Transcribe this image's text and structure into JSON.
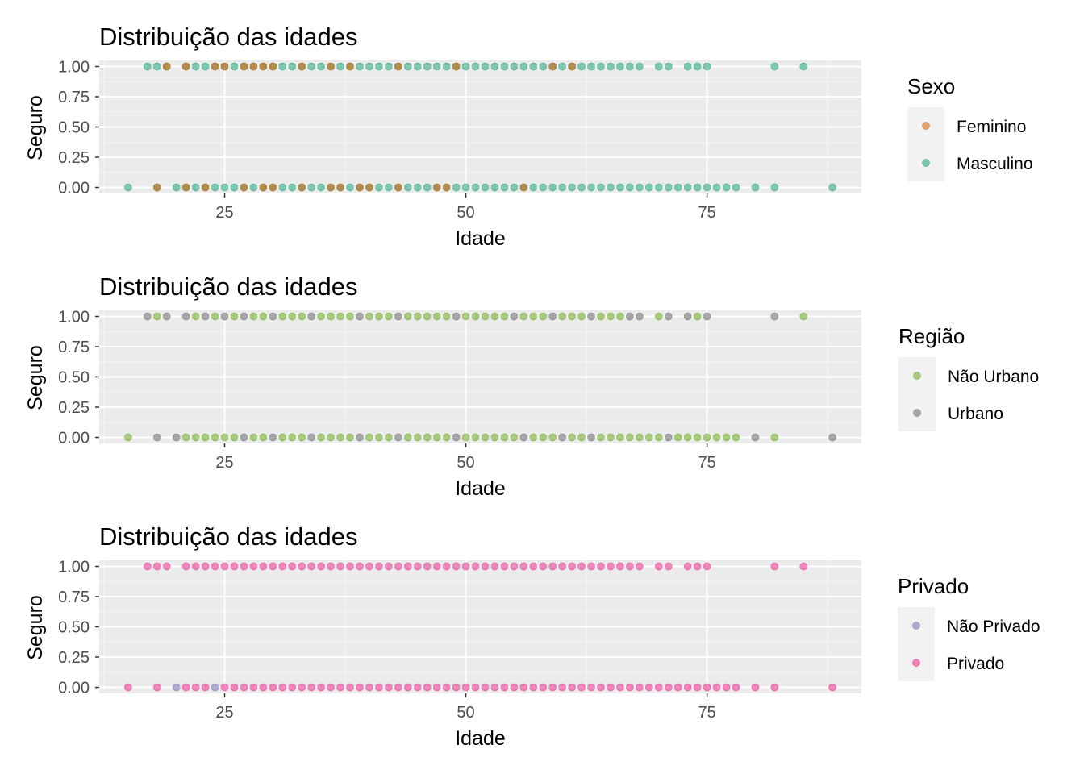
{
  "chart_data": [
    {
      "type": "scatter",
      "title": "Distribuição das idades",
      "xlabel": "Idade",
      "ylabel": "Seguro",
      "xlim": [
        12,
        91
      ],
      "ylim": [
        -0.05,
        1.05
      ],
      "x_ticks": [
        "25",
        "50",
        "75"
      ],
      "y_ticks": [
        "0.00",
        "0.25",
        "0.50",
        "0.75",
        "1.00"
      ],
      "grid": true,
      "legend": {
        "title": "Sexo",
        "position": "right",
        "entries": [
          {
            "label": "Feminino",
            "color": "#D95F02"
          },
          {
            "label": "Masculino",
            "color": "#1B9E77"
          }
        ]
      },
      "series": [
        {
          "name": "Masculino",
          "color": "#1B9E77",
          "points_y1": [
            17,
            18,
            19,
            21,
            22,
            23,
            24,
            25,
            26,
            27,
            28,
            29,
            30,
            31,
            32,
            33,
            34,
            35,
            36,
            37,
            38,
            39,
            40,
            41,
            42,
            43,
            44,
            45,
            46,
            47,
            48,
            49,
            50,
            51,
            52,
            53,
            54,
            55,
            56,
            57,
            58,
            59,
            60,
            61,
            62,
            63,
            64,
            65,
            66,
            67,
            68,
            70,
            71,
            73,
            74,
            75,
            82,
            85
          ],
          "points_y0": [
            15,
            18,
            20,
            21,
            22,
            23,
            24,
            25,
            26,
            27,
            28,
            29,
            30,
            31,
            32,
            33,
            34,
            35,
            36,
            37,
            38,
            39,
            40,
            41,
            42,
            43,
            44,
            45,
            46,
            47,
            48,
            49,
            50,
            51,
            52,
            53,
            54,
            55,
            56,
            57,
            58,
            59,
            60,
            61,
            62,
            63,
            64,
            65,
            66,
            67,
            68,
            69,
            70,
            71,
            72,
            73,
            74,
            75,
            76,
            77,
            78,
            80,
            82,
            88
          ]
        },
        {
          "name": "Feminino",
          "color": "#D95F02",
          "points_y1": [
            19,
            21,
            24,
            25,
            27,
            28,
            29,
            30,
            33,
            36,
            38,
            43,
            49,
            59,
            61
          ],
          "points_y0": [
            18,
            21,
            23,
            27,
            29,
            30,
            33,
            36,
            37,
            39,
            40,
            43,
            47,
            48,
            56
          ]
        }
      ]
    },
    {
      "type": "scatter",
      "title": "Distribuição das idades",
      "xlabel": "Idade",
      "ylabel": "Seguro",
      "xlim": [
        12,
        91
      ],
      "ylim": [
        -0.05,
        1.05
      ],
      "x_ticks": [
        "25",
        "50",
        "75"
      ],
      "y_ticks": [
        "0.00",
        "0.25",
        "0.50",
        "0.75",
        "1.00"
      ],
      "grid": true,
      "legend": {
        "title": "Região",
        "position": "right",
        "entries": [
          {
            "label": "Não Urbano",
            "color": "#66A61E"
          },
          {
            "label": "Urbano",
            "color": "#666666"
          }
        ]
      },
      "series": [
        {
          "name": "Não Urbano",
          "color": "#66A61E",
          "points_y1": [
            18,
            22,
            24,
            26,
            28,
            29,
            31,
            32,
            33,
            35,
            36,
            37,
            38,
            40,
            41,
            42,
            44,
            45,
            46,
            47,
            48,
            50,
            51,
            52,
            53,
            54,
            56,
            57,
            58,
            60,
            61,
            62,
            64,
            65,
            66,
            70,
            74,
            85
          ],
          "points_y0": [
            15,
            21,
            22,
            23,
            24,
            25,
            26,
            28,
            29,
            31,
            32,
            33,
            35,
            36,
            37,
            38,
            40,
            41,
            42,
            44,
            45,
            46,
            47,
            48,
            50,
            51,
            52,
            53,
            54,
            55,
            57,
            58,
            59,
            61,
            62,
            64,
            65,
            66,
            67,
            68,
            69,
            70,
            72,
            73,
            74,
            75,
            76,
            77,
            78,
            82
          ]
        },
        {
          "name": "Urbano",
          "color": "#666666",
          "points_y1": [
            17,
            19,
            21,
            23,
            25,
            27,
            30,
            34,
            39,
            43,
            49,
            55,
            59,
            63,
            67,
            68,
            71,
            73,
            75,
            82
          ],
          "points_y0": [
            18,
            20,
            27,
            30,
            34,
            39,
            43,
            49,
            56,
            60,
            63,
            71,
            80,
            88
          ]
        }
      ]
    },
    {
      "type": "scatter",
      "title": "Distribuição das idades",
      "xlabel": "Idade",
      "ylabel": "Seguro",
      "xlim": [
        12,
        91
      ],
      "ylim": [
        -0.05,
        1.05
      ],
      "x_ticks": [
        "25",
        "50",
        "75"
      ],
      "y_ticks": [
        "0.00",
        "0.25",
        "0.50",
        "0.75",
        "1.00"
      ],
      "grid": true,
      "legend": {
        "title": "Privado",
        "position": "right",
        "entries": [
          {
            "label": "Não Privado",
            "color": "#7570B3"
          },
          {
            "label": "Privado",
            "color": "#E7298A"
          }
        ]
      },
      "series": [
        {
          "name": "Privado",
          "color": "#E7298A",
          "points_y1": [
            17,
            18,
            19,
            21,
            22,
            23,
            24,
            25,
            26,
            27,
            28,
            29,
            30,
            31,
            32,
            33,
            34,
            35,
            36,
            37,
            38,
            39,
            40,
            41,
            42,
            43,
            44,
            45,
            46,
            47,
            48,
            49,
            50,
            51,
            52,
            53,
            54,
            55,
            56,
            57,
            58,
            59,
            60,
            61,
            62,
            63,
            64,
            65,
            66,
            67,
            68,
            70,
            71,
            73,
            74,
            75,
            82,
            85
          ],
          "points_y0": [
            15,
            18,
            21,
            22,
            23,
            25,
            26,
            27,
            28,
            29,
            30,
            31,
            32,
            33,
            34,
            35,
            36,
            37,
            38,
            39,
            40,
            41,
            42,
            43,
            44,
            45,
            46,
            47,
            48,
            49,
            50,
            51,
            52,
            53,
            54,
            55,
            56,
            57,
            58,
            59,
            60,
            61,
            62,
            63,
            64,
            65,
            66,
            67,
            68,
            69,
            70,
            71,
            72,
            73,
            74,
            75,
            76,
            77,
            78,
            80,
            82,
            88
          ]
        },
        {
          "name": "Não Privado",
          "color": "#7570B3",
          "points_y1": [],
          "points_y0": [
            20,
            24
          ]
        }
      ]
    }
  ]
}
